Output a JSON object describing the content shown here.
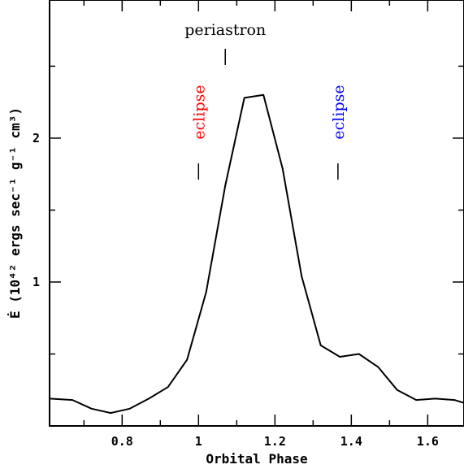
{
  "chart_data": {
    "type": "line",
    "title": "",
    "xlabel": "Orbital Phase",
    "ylabel": "Ė (10⁴² ergs sec⁻¹ g⁻¹ cm³)",
    "xlim": [
      0.61,
      1.695
    ],
    "ylim": [
      0.0,
      2.96
    ],
    "x_ticks": [
      0.8,
      1.0,
      1.2,
      1.4,
      1.6
    ],
    "x_tick_labels": [
      "0.8",
      "1",
      "1.2",
      "1.4",
      "1.6"
    ],
    "y_ticks": [
      1,
      2
    ],
    "y_tick_labels": [
      "1",
      "2"
    ],
    "grid": false,
    "series": [
      {
        "color": "#000000",
        "x": [
          0.61,
          0.67,
          0.72,
          0.77,
          0.82,
          0.87,
          0.92,
          0.97,
          1.02,
          1.07,
          1.12,
          1.17,
          1.22,
          1.27,
          1.32,
          1.37,
          1.42,
          1.47,
          1.52,
          1.57,
          1.62,
          1.67,
          1.695
        ],
        "y": [
          0.19,
          0.18,
          0.12,
          0.09,
          0.12,
          0.19,
          0.27,
          0.46,
          0.93,
          1.67,
          2.28,
          2.3,
          1.79,
          1.04,
          0.56,
          0.48,
          0.5,
          0.41,
          0.25,
          0.18,
          0.19,
          0.18,
          0.16
        ]
      }
    ],
    "annotations": {
      "periastron": {
        "text": "periastron",
        "x": 1.07,
        "color": "#000000"
      },
      "eclipse_1": {
        "text": "eclipse",
        "x": 1.0,
        "color": "#ff0000"
      },
      "eclipse_2": {
        "text": "eclipse",
        "x": 1.365,
        "color": "#0000ff"
      }
    }
  }
}
